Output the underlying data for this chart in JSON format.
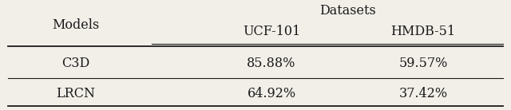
{
  "title": "Datasets",
  "col_header_1": "UCF-101",
  "col_header_2": "HMDB-51",
  "row_header": "Models",
  "rows": [
    {
      "model": "C3D",
      "ucf": "85.88%",
      "hmdb": "59.57%"
    },
    {
      "model": "LRCN",
      "ucf": "64.92%",
      "hmdb": "37.42%"
    }
  ],
  "bg_color": "#f2efe9",
  "text_color": "#1a1a1a",
  "font_size": 11.5,
  "figsize": [
    6.4,
    1.38
  ],
  "dpi": 100
}
